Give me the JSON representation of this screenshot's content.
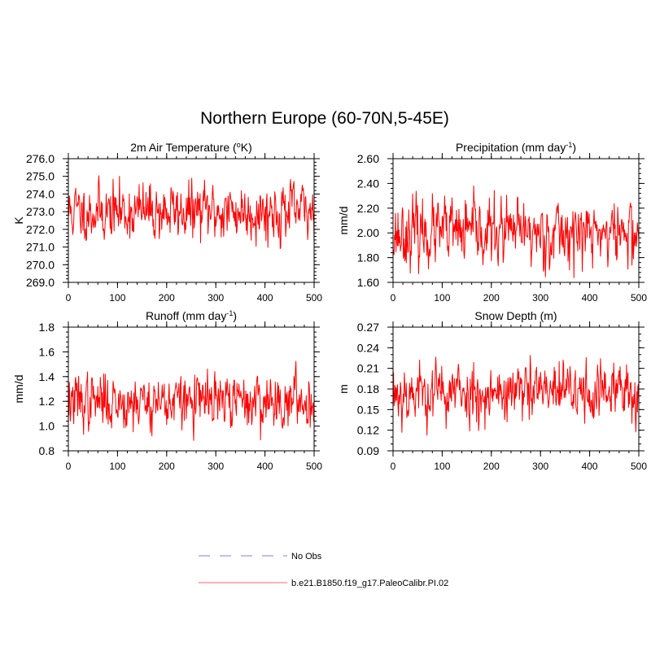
{
  "title": "Northern Europe (60-70N,5-45E)",
  "legend": {
    "position": "bottom-center",
    "entries": [
      {
        "label": "No Obs",
        "color": "#aaaaee",
        "style": "dashed"
      },
      {
        "label": "b.e21.B1850.f19_g17.PaleoCalibr.PI.02",
        "color": "#ff9999",
        "style": "solid"
      }
    ]
  },
  "chart_data": [
    {
      "type": "line",
      "title_main": "2m Air Temperature (",
      "title_sup": "o",
      "title_end": "K)",
      "ylabel": "K",
      "xlim": [
        0,
        500
      ],
      "ylim": [
        269.0,
        276.0
      ],
      "xticks": [
        0,
        100,
        200,
        300,
        400,
        500
      ],
      "yticks": [
        269.0,
        270.0,
        271.0,
        272.0,
        273.0,
        274.0,
        275.0,
        276.0
      ],
      "ytick_decimals": 1,
      "x_minor_step": 20,
      "y_minor_step": 0.2,
      "series_color": "#ff0000",
      "series": [
        {
          "name": "b.e21.B1850.f19_g17.PaleoCalibr.PI.02",
          "x_start": 1,
          "x_end": 500,
          "mean": 273.0,
          "sd": 0.8,
          "min": 269.4,
          "max": 275.8,
          "seed": 11
        }
      ]
    },
    {
      "type": "line",
      "title_main": "Precipitation (mm day",
      "title_sup": "-1",
      "title_end": ")",
      "ylabel": "mm/d",
      "xlim": [
        0,
        500
      ],
      "ylim": [
        1.6,
        2.6
      ],
      "xticks": [
        0,
        100,
        200,
        300,
        400,
        500
      ],
      "yticks": [
        1.6,
        1.8,
        2.0,
        2.2,
        2.4,
        2.6
      ],
      "ytick_decimals": 2,
      "x_minor_step": 20,
      "y_minor_step": 0.04,
      "series_color": "#ff0000",
      "series": [
        {
          "name": "b.e21.B1850.f19_g17.PaleoCalibr.PI.02",
          "x_start": 1,
          "x_end": 500,
          "mean": 2.0,
          "sd": 0.13,
          "min": 1.6,
          "max": 2.43,
          "seed": 23
        }
      ]
    },
    {
      "type": "line",
      "title_main": "Runoff (mm day",
      "title_sup": "-1",
      "title_end": ")",
      "ylabel": "mm/d",
      "xlim": [
        0,
        500
      ],
      "ylim": [
        0.8,
        1.8
      ],
      "xticks": [
        0,
        100,
        200,
        300,
        400,
        500
      ],
      "yticks": [
        0.8,
        1.0,
        1.2,
        1.4,
        1.6,
        1.8
      ],
      "ytick_decimals": 1,
      "x_minor_step": 20,
      "y_minor_step": 0.04,
      "series_color": "#ff0000",
      "series": [
        {
          "name": "b.e21.B1850.f19_g17.PaleoCalibr.PI.02",
          "x_start": 1,
          "x_end": 500,
          "mean": 1.2,
          "sd": 0.11,
          "min": 0.84,
          "max": 1.67,
          "seed": 37
        }
      ]
    },
    {
      "type": "line",
      "title_main": "Snow Depth (m)",
      "title_sup": "",
      "title_end": "",
      "ylabel": "m",
      "xlim": [
        0,
        500
      ],
      "ylim": [
        0.09,
        0.27
      ],
      "xticks": [
        0,
        100,
        200,
        300,
        400,
        500
      ],
      "yticks": [
        0.09,
        0.12,
        0.15,
        0.18,
        0.21,
        0.24,
        0.27
      ],
      "ytick_decimals": 2,
      "x_minor_step": 20,
      "y_minor_step": 0.01,
      "series_color": "#ff0000",
      "series": [
        {
          "name": "b.e21.B1850.f19_g17.PaleoCalibr.PI.02",
          "x_start": 1,
          "x_end": 500,
          "mean": 0.175,
          "sd": 0.022,
          "min": 0.112,
          "max": 0.262,
          "seed": 53
        }
      ]
    }
  ]
}
